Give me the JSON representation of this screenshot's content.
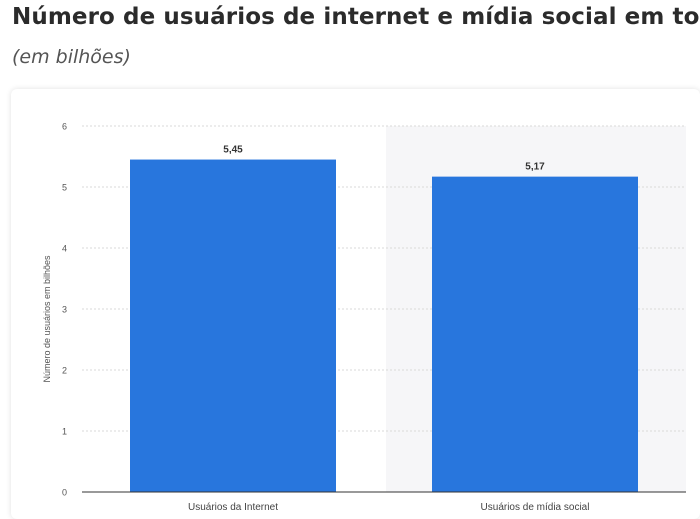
{
  "header": {
    "title": "Número de usuários de internet e mídia social em todo",
    "subtitle": "(em bilhões)"
  },
  "chart_data": {
    "type": "bar",
    "categories": [
      "Usuários da Internet",
      "Usuários de mídia social"
    ],
    "values": [
      5.45,
      5.17
    ],
    "value_labels": [
      "5,45",
      "5,17"
    ],
    "ylabel": "Número de usuários em bilhões",
    "xlabel": "",
    "ylim": [
      0,
      6
    ],
    "yticks": [
      "0",
      "1",
      "2",
      "3",
      "4",
      "5",
      "6"
    ],
    "grid": true,
    "bar_color": "#2876dd",
    "highlight_band_color": "#f6f6f8"
  }
}
